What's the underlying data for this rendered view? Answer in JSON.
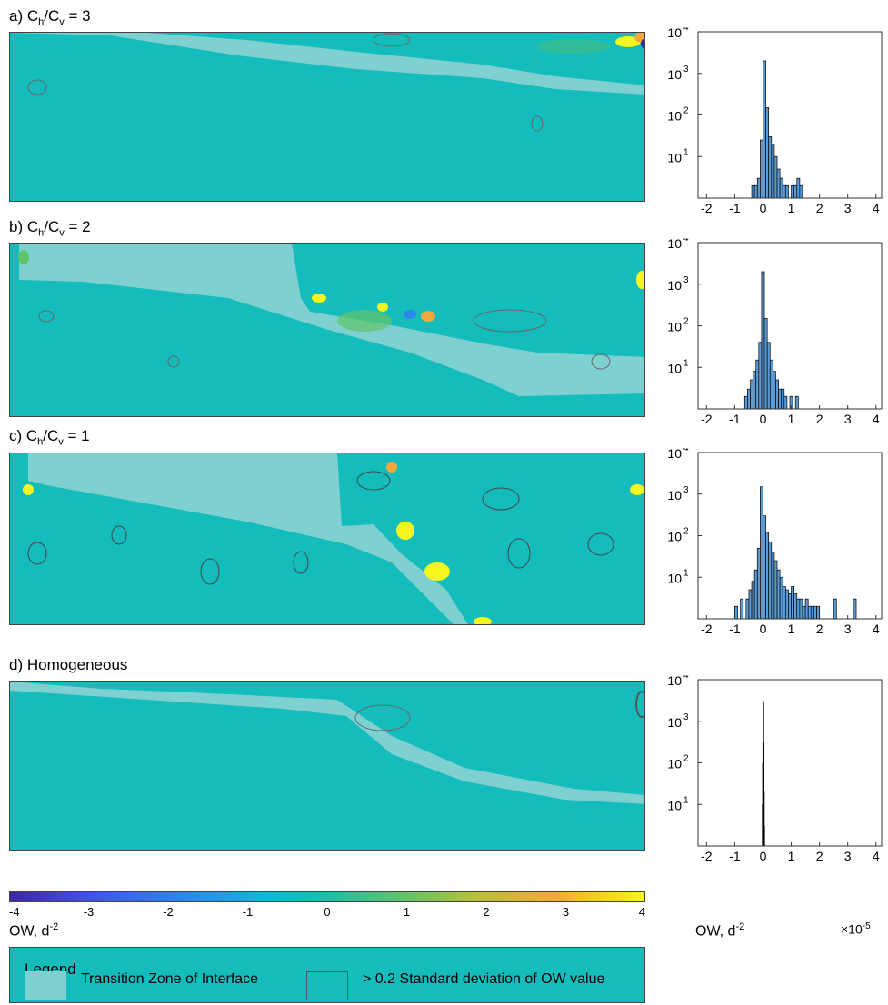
{
  "panels": [
    {
      "title_main": "a) C",
      "title_sub1": "h",
      "title_mid": "/C",
      "title_sub2": "v",
      "title_end": " = 3"
    },
    {
      "title_main": "b) C",
      "title_sub1": "h",
      "title_mid": "/C",
      "title_sub2": "v",
      "title_end": " = 2"
    },
    {
      "title_main": "c) C",
      "title_sub1": "h",
      "title_mid": "/C",
      "title_sub2": "v",
      "title_end": " = 1"
    },
    {
      "title_main": "d) Homogeneous",
      "title_sub1": "",
      "title_mid": "",
      "title_sub2": "",
      "title_end": ""
    }
  ],
  "colorbar": {
    "ticks": [
      "-4",
      "-3",
      "-2",
      "-1",
      "0",
      "1",
      "2",
      "3",
      "4"
    ],
    "label": "OW, d",
    "label_sup": "-2",
    "colors": [
      "#3e26a8",
      "#4450e0",
      "#2c86f0",
      "#1ab2d8",
      "#20bca8",
      "#5fc46a",
      "#b6c13a",
      "#f5a83a",
      "#f5f520"
    ]
  },
  "hist_axis": {
    "xlabel": "OW, d",
    "xlabel_sup": "-2",
    "exponent_base": "×10",
    "exponent_sup": "-5"
  },
  "legend": {
    "title": "Legend",
    "item1": "Transition Zone of Interface",
    "item2": "> 0.2 Standard deviation of OW value"
  },
  "colors": {
    "map_bg": "#15bcbc",
    "transition_zone": "#7fd0d0",
    "hist_bar": "#5b9bd5",
    "hist_bar_d": "#000000"
  },
  "chart_data": [
    {
      "type": "bar",
      "title": "a) Ch/Cv = 3",
      "x": [
        -0.45,
        -0.35,
        -0.25,
        -0.15,
        -0.05,
        0.05,
        0.15,
        0.25,
        0.35,
        0.45,
        0.55,
        0.65,
        0.75,
        0.85,
        0.95,
        1.05,
        1.15,
        1.25,
        1.35
      ],
      "values": [
        1,
        2,
        2,
        3,
        25,
        2000,
        150,
        30,
        20,
        10,
        5,
        3,
        2,
        2,
        1,
        2,
        2,
        3,
        2
      ],
      "xlim": [
        -2.3,
        4.2
      ],
      "ylim": [
        1,
        10000
      ],
      "yscale": "log",
      "xticks": [
        "-2",
        "-1",
        "0",
        "1",
        "2",
        "3",
        "4"
      ],
      "yticks": [
        "10",
        "10",
        "10",
        "10"
      ],
      "ytick_exps": [
        "1",
        "2",
        "3",
        "4"
      ]
    },
    {
      "type": "bar",
      "title": "b) Ch/Cv = 2",
      "x": [
        -1.0,
        -0.9,
        -0.8,
        -0.7,
        -0.6,
        -0.5,
        -0.4,
        -0.3,
        -0.2,
        -0.1,
        0.0,
        0.1,
        0.2,
        0.3,
        0.4,
        0.5,
        0.6,
        0.7,
        0.8,
        0.9,
        1.0,
        1.1,
        1.2,
        1.3,
        1.4,
        1.5,
        1.6,
        1.7,
        1.8
      ],
      "values": [
        1,
        1,
        1,
        1,
        2,
        3,
        5,
        8,
        15,
        40,
        2000,
        150,
        40,
        15,
        8,
        5,
        3,
        3,
        2,
        1,
        2,
        1,
        2,
        1,
        1,
        1,
        1,
        1,
        1
      ],
      "xlim": [
        -2.3,
        4.2
      ],
      "ylim": [
        1,
        10000
      ],
      "yscale": "log",
      "xticks": [
        "-2",
        "-1",
        "0",
        "1",
        "2",
        "3",
        "4"
      ],
      "yticks": [
        "10",
        "10",
        "10",
        "10"
      ],
      "ytick_exps": [
        "1",
        "2",
        "3",
        "4"
      ]
    },
    {
      "type": "bar",
      "title": "c) Ch/Cv = 1",
      "x": [
        -0.95,
        -0.85,
        -0.75,
        -0.65,
        -0.55,
        -0.45,
        -0.35,
        -0.25,
        -0.15,
        -0.05,
        0.05,
        0.15,
        0.25,
        0.35,
        0.45,
        0.55,
        0.65,
        0.75,
        0.85,
        0.95,
        1.05,
        1.15,
        1.25,
        1.35,
        1.45,
        1.55,
        1.65,
        1.75,
        1.85,
        1.95,
        2.55,
        3.25
      ],
      "values": [
        2,
        1,
        3,
        1,
        3,
        5,
        8,
        15,
        50,
        1500,
        300,
        120,
        70,
        40,
        25,
        15,
        10,
        6,
        5,
        4,
        6,
        4,
        3,
        3,
        2,
        3,
        2,
        2,
        2,
        2,
        3,
        3
      ],
      "xlim": [
        -2.3,
        4.2
      ],
      "ylim": [
        1,
        10000
      ],
      "yscale": "log",
      "xticks": [
        "-2",
        "-1",
        "0",
        "1",
        "2",
        "3",
        "4"
      ],
      "yticks": [
        "10",
        "10",
        "10",
        "10"
      ],
      "ytick_exps": [
        "1",
        "2",
        "3",
        "4"
      ]
    },
    {
      "type": "bar",
      "title": "d) Homogeneous",
      "x": [
        -0.02,
        -0.01,
        0.0,
        0.01,
        0.02,
        0.03
      ],
      "values": [
        10,
        100,
        3000,
        300,
        20,
        3
      ],
      "xlim": [
        -2.3,
        4.2
      ],
      "ylim": [
        1,
        10000
      ],
      "yscale": "log",
      "xticks": [
        "-2",
        "-1",
        "0",
        "1",
        "2",
        "3",
        "4"
      ],
      "yticks": [
        "10",
        "10",
        "10",
        "10"
      ],
      "ytick_exps": [
        "1",
        "2",
        "3",
        "4"
      ]
    }
  ]
}
